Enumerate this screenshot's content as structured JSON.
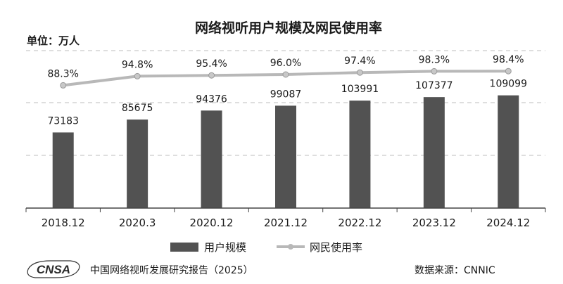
{
  "chart_data": {
    "type": "bar",
    "title": "网络视听用户规模及网民使用率",
    "unit_label": "单位：万人",
    "categories": [
      "2018.12",
      "2020.3",
      "2020.12",
      "2021.12",
      "2022.12",
      "2023.12",
      "2024.12"
    ],
    "series": [
      {
        "name": "用户规模",
        "type": "bar",
        "values": [
          73183,
          85675,
          94376,
          99087,
          103991,
          107377,
          109099
        ],
        "labels": [
          "73183",
          "85675",
          "94376",
          "99087",
          "103991",
          "107377",
          "109099"
        ]
      },
      {
        "name": "网民使用率",
        "type": "line",
        "values": [
          88.3,
          94.8,
          95.4,
          96.0,
          97.4,
          98.3,
          98.4
        ],
        "labels": [
          "88.3%",
          "94.8%",
          "95.4%",
          "96.0%",
          "97.4%",
          "98.3%",
          "98.4%"
        ]
      }
    ],
    "grid": true,
    "legend_position": "bottom",
    "colors": {
      "bar": "#525252",
      "line": "#b8b8b8",
      "grid": "#bdbdbd",
      "axis": "#444444"
    }
  },
  "footer": {
    "logo_text": "CNSA",
    "report_title": "中国网络视听发展研究报告（2025）",
    "source": "数据来源：CNNIC"
  }
}
